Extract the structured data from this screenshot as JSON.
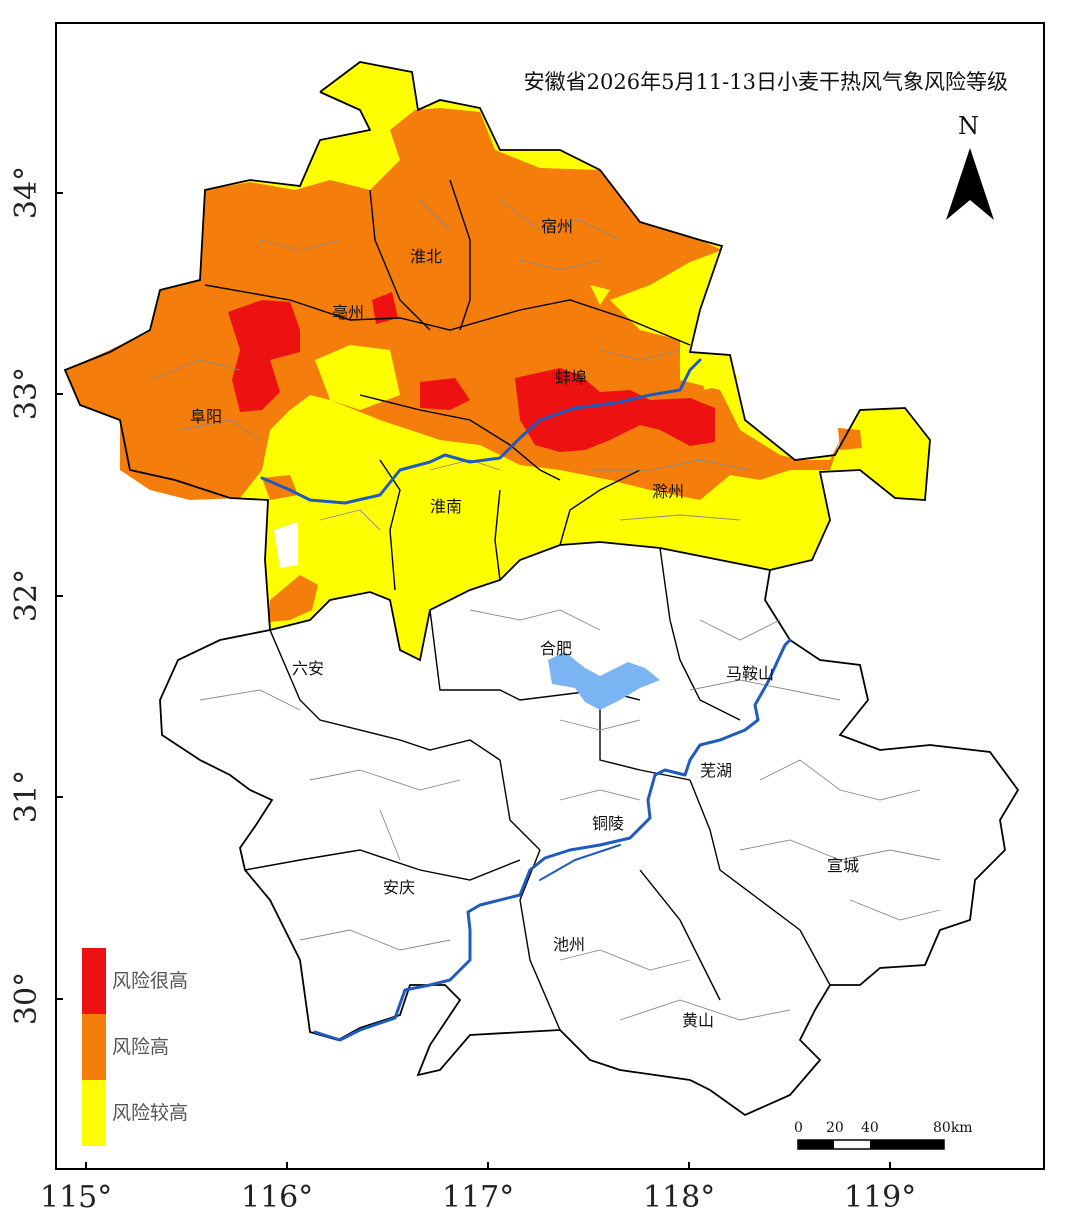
{
  "map": {
    "title": "安徽省2026年5月11-13日小麦干热风气象风险等级",
    "north_label": "N",
    "lon_ticks": [
      "115°",
      "116°",
      "117°",
      "118°",
      "119°"
    ],
    "lat_ticks": [
      "34°",
      "33°",
      "32°",
      "31°",
      "30°"
    ],
    "cities": {
      "suzhou": "宿州",
      "huaibei": "淮北",
      "bozhou": "亳州",
      "fuyang": "阜阳",
      "bengbu": "蚌埠",
      "huainan": "淮南",
      "chuzhou": "滁州",
      "liuan": "六安",
      "hefei": "合肥",
      "maanshan": "马鞍山",
      "wuhu": "芜湖",
      "tongling": "铜陵",
      "anqing": "安庆",
      "xuancheng": "宣城",
      "chizhou": "池州",
      "huangshan": "黄山"
    },
    "legend": [
      {
        "label": "风险很高",
        "color": "#ee1111"
      },
      {
        "label": "风险高",
        "color": "#f47d0b"
      },
      {
        "label": "风险较高",
        "color": "#ffff00"
      }
    ],
    "scale_bar": {
      "labels": [
        "0",
        "20",
        "40",
        "80km"
      ]
    },
    "colors": {
      "river": "#1f5bbf",
      "lake": "#7ab4f2",
      "boundary": "#000000"
    }
  }
}
